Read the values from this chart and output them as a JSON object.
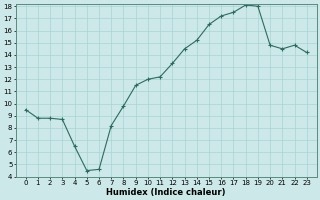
{
  "x": [
    0,
    1,
    2,
    3,
    4,
    5,
    6,
    7,
    8,
    9,
    10,
    11,
    12,
    13,
    14,
    15,
    16,
    17,
    18,
    19,
    20,
    21,
    22,
    23
  ],
  "y": [
    9.5,
    8.8,
    8.8,
    8.7,
    6.5,
    4.5,
    4.6,
    8.2,
    9.8,
    11.5,
    12.0,
    12.2,
    13.3,
    14.5,
    15.2,
    16.5,
    17.2,
    17.5,
    18.1,
    18.0,
    14.8,
    14.5,
    14.8,
    14.2
  ],
  "xlabel": "Humidex (Indice chaleur)",
  "line_color": "#2e6b5e",
  "bg_color": "#cce8e8",
  "grid_color": "#a8d4d4",
  "ylim_min": 4,
  "ylim_max": 18,
  "yticks": [
    4,
    5,
    6,
    7,
    8,
    9,
    10,
    11,
    12,
    13,
    14,
    15,
    16,
    17,
    18
  ],
  "xticks": [
    0,
    1,
    2,
    3,
    4,
    5,
    6,
    7,
    8,
    9,
    10,
    11,
    12,
    13,
    14,
    15,
    16,
    17,
    18,
    19,
    20,
    21,
    22,
    23
  ],
  "xlabel_fontsize": 6,
  "tick_fontsize": 5,
  "marker": "+",
  "markersize": 3,
  "linewidth": 0.8
}
